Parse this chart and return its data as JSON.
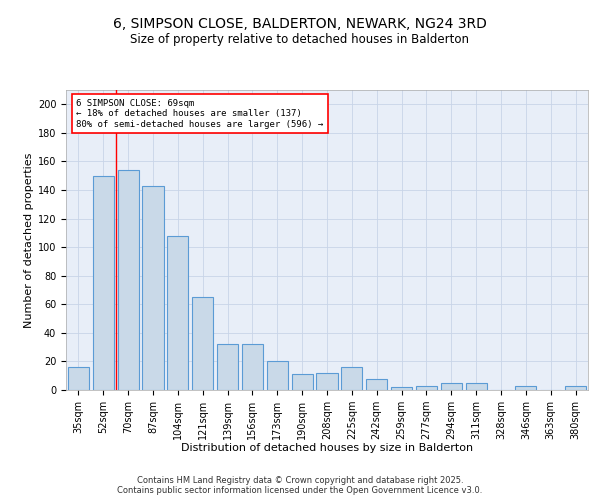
{
  "title": "6, SIMPSON CLOSE, BALDERTON, NEWARK, NG24 3RD",
  "subtitle": "Size of property relative to detached houses in Balderton",
  "xlabel": "Distribution of detached houses by size in Balderton",
  "ylabel": "Number of detached properties",
  "categories": [
    "35sqm",
    "52sqm",
    "70sqm",
    "87sqm",
    "104sqm",
    "121sqm",
    "139sqm",
    "156sqm",
    "173sqm",
    "190sqm",
    "208sqm",
    "225sqm",
    "242sqm",
    "259sqm",
    "277sqm",
    "294sqm",
    "311sqm",
    "328sqm",
    "346sqm",
    "363sqm",
    "380sqm"
  ],
  "values": [
    16,
    150,
    154,
    143,
    108,
    65,
    32,
    32,
    20,
    11,
    12,
    16,
    8,
    2,
    3,
    5,
    5,
    0,
    3,
    0,
    3
  ],
  "bar_color": "#c9d9e8",
  "bar_edge_color": "#5b9bd5",
  "bar_edge_width": 0.8,
  "red_line_x": 1.5,
  "annotation_line1": "6 SIMPSON CLOSE: 69sqm",
  "annotation_line2": "← 18% of detached houses are smaller (137)",
  "annotation_line3": "80% of semi-detached houses are larger (596) →",
  "annotation_box_color": "white",
  "annotation_box_edge_color": "red",
  "annotation_fontsize": 6.5,
  "grid_color": "#c8d4e8",
  "background_color": "#e8eef8",
  "ylim": [
    0,
    210
  ],
  "yticks": [
    0,
    20,
    40,
    60,
    80,
    100,
    120,
    140,
    160,
    180,
    200
  ],
  "footer_line1": "Contains HM Land Registry data © Crown copyright and database right 2025.",
  "footer_line2": "Contains public sector information licensed under the Open Government Licence v3.0.",
  "title_fontsize": 10,
  "subtitle_fontsize": 8.5,
  "xlabel_fontsize": 8,
  "ylabel_fontsize": 8,
  "tick_fontsize": 7,
  "footer_fontsize": 6
}
